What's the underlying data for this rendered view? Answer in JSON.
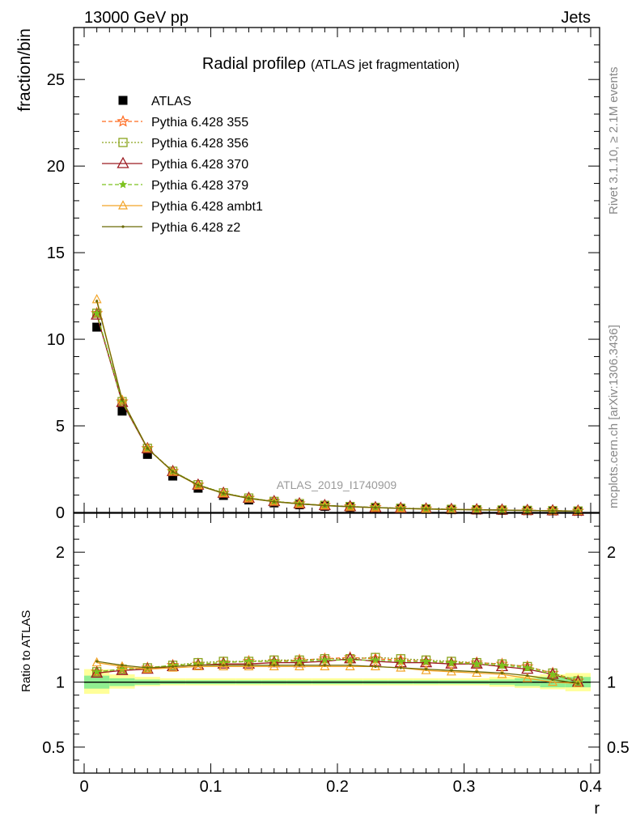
{
  "header": {
    "energy_label": "13000 GeV pp",
    "process_label": "Jets",
    "side_label_top": "Rivet 3.1.10, ≥ 2.1M events",
    "side_label_bottom": "mcplots.cern.ch [arXiv:1306.3436]"
  },
  "colors": {
    "ATLAS": "#000000",
    "Pythia 6.428 355": "#ff6a1f",
    "Pythia 6.428 356": "#8aa31c",
    "Pythia 6.428 370": "#9c1b22",
    "Pythia 6.428 379": "#7cc21f",
    "Pythia 6.428 ambt1": "#f2a427",
    "Pythia 6.428 z2": "#6b6a06",
    "band_inner": "#90ee90",
    "band_outer": "#ffff99"
  },
  "chart_data": [
    {
      "panel": "main",
      "type": "line",
      "title": "Radial profileρ",
      "subtitle": "(ATLAS jet fragmentation)",
      "watermark": "ATLAS_2019_I1740909",
      "xlabel": "r",
      "ylabel": "fraction/bin",
      "xlim": [
        0,
        0.4
      ],
      "ylim": [
        0,
        28
      ],
      "yticks": [
        0,
        5,
        10,
        15,
        20,
        25
      ],
      "xticks": [
        0,
        0.1,
        0.2,
        0.3,
        0.4
      ],
      "legend_position": "top-left",
      "x": [
        0.01,
        0.03,
        0.05,
        0.07,
        0.09,
        0.11,
        0.13,
        0.15,
        0.17,
        0.19,
        0.21,
        0.23,
        0.25,
        0.27,
        0.29,
        0.31,
        0.33,
        0.35,
        0.37,
        0.39
      ],
      "series": [
        {
          "name": "ATLAS",
          "marker": "square",
          "values": [
            10.7,
            5.85,
            3.35,
            2.1,
            1.4,
            0.98,
            0.72,
            0.55,
            0.44,
            0.35,
            0.29,
            0.25,
            0.21,
            0.18,
            0.16,
            0.14,
            0.12,
            0.11,
            0.09,
            0.08
          ]
        },
        {
          "name": "Pythia 6.428 355",
          "marker": "star",
          "dash": "dashed",
          "values": [
            11.5,
            6.4,
            3.7,
            2.38,
            1.59,
            1.12,
            0.83,
            0.64,
            0.51,
            0.41,
            0.34,
            0.29,
            0.24,
            0.21,
            0.18,
            0.16,
            0.14,
            0.12,
            0.1,
            0.08
          ]
        },
        {
          "name": "Pythia 6.428 356",
          "marker": "square-open",
          "dash": "dotted",
          "values": [
            11.5,
            6.4,
            3.7,
            2.38,
            1.6,
            1.13,
            0.83,
            0.64,
            0.51,
            0.41,
            0.34,
            0.29,
            0.24,
            0.21,
            0.18,
            0.16,
            0.14,
            0.12,
            0.1,
            0.08
          ]
        },
        {
          "name": "Pythia 6.428 370",
          "marker": "triangle-open",
          "dash": "solid",
          "values": [
            11.4,
            6.35,
            3.68,
            2.36,
            1.58,
            1.11,
            0.82,
            0.63,
            0.5,
            0.4,
            0.34,
            0.28,
            0.24,
            0.2,
            0.18,
            0.16,
            0.14,
            0.12,
            0.1,
            0.08
          ]
        },
        {
          "name": "Pythia 6.428 379",
          "marker": "star-small",
          "dash": "dashed",
          "values": [
            11.5,
            6.4,
            3.7,
            2.37,
            1.59,
            1.12,
            0.83,
            0.64,
            0.51,
            0.41,
            0.34,
            0.29,
            0.24,
            0.21,
            0.18,
            0.16,
            0.14,
            0.12,
            0.1,
            0.08
          ]
        },
        {
          "name": "Pythia 6.428 ambt1",
          "marker": "triangle-open-small",
          "dash": "solid",
          "values": [
            12.3,
            6.5,
            3.7,
            2.34,
            1.56,
            1.1,
            0.8,
            0.62,
            0.49,
            0.39,
            0.32,
            0.27,
            0.23,
            0.19,
            0.17,
            0.15,
            0.13,
            0.11,
            0.09,
            0.08
          ]
        },
        {
          "name": "Pythia 6.428 z2",
          "marker": "dot",
          "dash": "solid",
          "values": [
            12.2,
            6.5,
            3.7,
            2.35,
            1.57,
            1.1,
            0.81,
            0.62,
            0.49,
            0.39,
            0.33,
            0.28,
            0.23,
            0.2,
            0.17,
            0.15,
            0.13,
            0.11,
            0.09,
            0.08
          ]
        }
      ]
    },
    {
      "panel": "ratio",
      "type": "line",
      "ylabel": "Ratio to ATLAS",
      "xlabel": "r",
      "xlim": [
        0,
        0.4
      ],
      "ylim": [
        0.3,
        2.3
      ],
      "yticks": [
        0.5,
        1,
        2
      ],
      "xticks": [
        0,
        0.1,
        0.2,
        0.3,
        0.4
      ],
      "x": [
        0.01,
        0.03,
        0.05,
        0.07,
        0.09,
        0.11,
        0.13,
        0.15,
        0.17,
        0.19,
        0.21,
        0.23,
        0.25,
        0.27,
        0.29,
        0.31,
        0.33,
        0.35,
        0.37,
        0.39
      ],
      "band_inner": [
        [
          0.95,
          1.05
        ],
        [
          0.97,
          1.03
        ],
        [
          0.98,
          1.02
        ],
        [
          0.985,
          1.015
        ],
        [
          0.985,
          1.015
        ],
        [
          0.985,
          1.015
        ],
        [
          0.985,
          1.015
        ],
        [
          0.985,
          1.015
        ],
        [
          0.985,
          1.015
        ],
        [
          0.985,
          1.015
        ],
        [
          0.985,
          1.015
        ],
        [
          0.985,
          1.015
        ],
        [
          0.985,
          1.015
        ],
        [
          0.985,
          1.015
        ],
        [
          0.985,
          1.015
        ],
        [
          0.985,
          1.015
        ],
        [
          0.98,
          1.02
        ],
        [
          0.97,
          1.03
        ],
        [
          0.96,
          1.04
        ],
        [
          0.96,
          1.04
        ]
      ],
      "band_outer": [
        [
          0.91,
          1.1
        ],
        [
          0.95,
          1.06
        ],
        [
          0.97,
          1.04
        ],
        [
          0.975,
          1.03
        ],
        [
          0.975,
          1.03
        ],
        [
          0.975,
          1.03
        ],
        [
          0.975,
          1.03
        ],
        [
          0.975,
          1.03
        ],
        [
          0.975,
          1.03
        ],
        [
          0.975,
          1.03
        ],
        [
          0.975,
          1.03
        ],
        [
          0.975,
          1.03
        ],
        [
          0.975,
          1.03
        ],
        [
          0.975,
          1.03
        ],
        [
          0.975,
          1.03
        ],
        [
          0.975,
          1.03
        ],
        [
          0.965,
          1.04
        ],
        [
          0.955,
          1.05
        ],
        [
          0.945,
          1.06
        ],
        [
          0.93,
          1.07
        ]
      ],
      "series": [
        {
          "name": "Pythia 6.428 355",
          "values": [
            1.08,
            1.1,
            1.11,
            1.13,
            1.14,
            1.15,
            1.16,
            1.16,
            1.17,
            1.18,
            1.19,
            1.18,
            1.17,
            1.16,
            1.15,
            1.15,
            1.14,
            1.12,
            1.07,
            1.01
          ]
        },
        {
          "name": "Pythia 6.428 356",
          "values": [
            1.08,
            1.1,
            1.11,
            1.13,
            1.15,
            1.16,
            1.16,
            1.17,
            1.17,
            1.18,
            1.18,
            1.19,
            1.18,
            1.17,
            1.16,
            1.15,
            1.14,
            1.12,
            1.07,
            1.01
          ]
        },
        {
          "name": "Pythia 6.428 370",
          "values": [
            1.07,
            1.09,
            1.1,
            1.12,
            1.13,
            1.14,
            1.14,
            1.15,
            1.15,
            1.16,
            1.18,
            1.16,
            1.15,
            1.15,
            1.14,
            1.14,
            1.12,
            1.1,
            1.06,
            1.0
          ]
        },
        {
          "name": "Pythia 6.428 379",
          "values": [
            1.08,
            1.1,
            1.11,
            1.13,
            1.14,
            1.15,
            1.16,
            1.16,
            1.16,
            1.17,
            1.17,
            1.17,
            1.16,
            1.16,
            1.15,
            1.14,
            1.13,
            1.11,
            1.06,
            1.0
          ]
        },
        {
          "name": "Pythia 6.428 ambt1",
          "values": [
            1.15,
            1.12,
            1.1,
            1.11,
            1.12,
            1.12,
            1.12,
            1.12,
            1.12,
            1.12,
            1.12,
            1.12,
            1.11,
            1.09,
            1.08,
            1.07,
            1.06,
            1.03,
            1.0,
            0.99
          ]
        },
        {
          "name": "Pythia 6.428 z2",
          "values": [
            1.16,
            1.13,
            1.11,
            1.12,
            1.13,
            1.13,
            1.13,
            1.13,
            1.13,
            1.13,
            1.13,
            1.12,
            1.11,
            1.1,
            1.09,
            1.08,
            1.07,
            1.05,
            1.02,
            0.99
          ]
        }
      ]
    }
  ]
}
